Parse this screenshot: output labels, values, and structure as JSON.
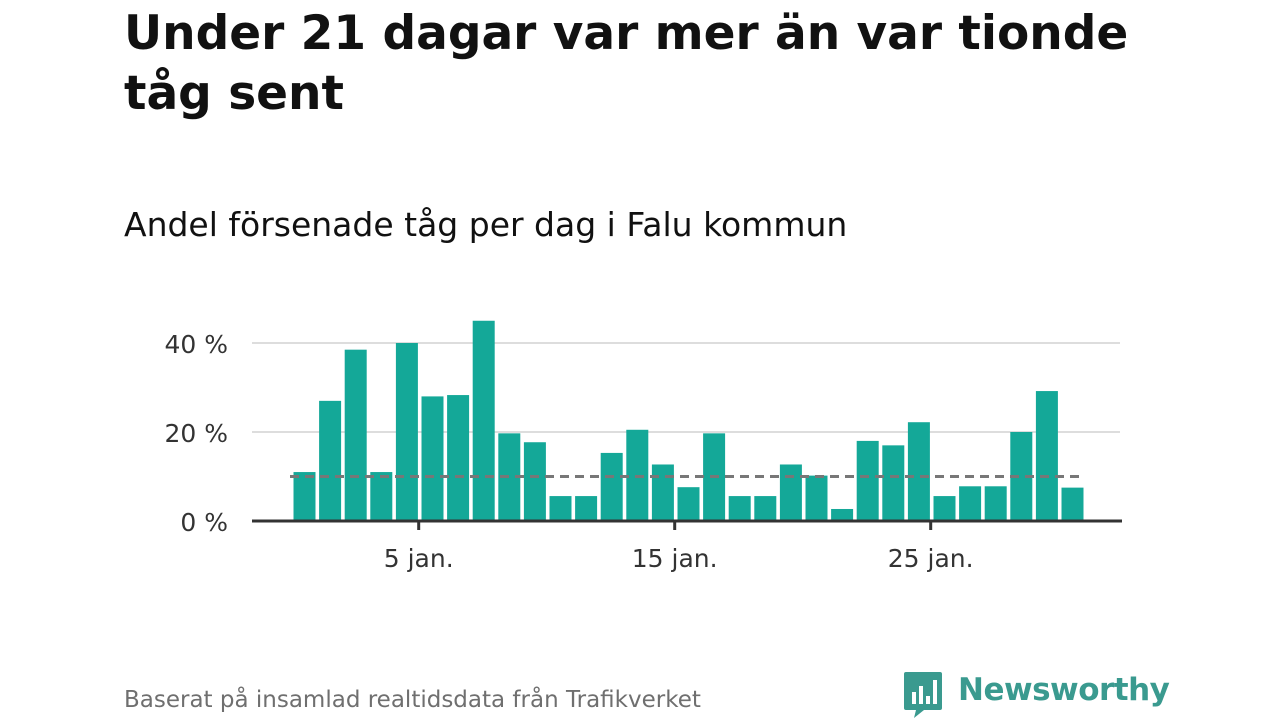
{
  "title": "Under 21 dagar var mer än var tionde tåg sent",
  "subtitle": "Andel försenade tåg per dag i Falu kommun",
  "footer": "Baserat på insamlad realtidsdata från Trafikverket",
  "brand": {
    "name": "Newsworthy",
    "icon": "newsworthy-logo-icon",
    "color": "#3a9a8f"
  },
  "colors": {
    "bar": "#14a898",
    "reference_line": "#777777",
    "grid": "#dddddd"
  },
  "chart_data": {
    "type": "bar",
    "x": [
      1,
      2,
      3,
      4,
      5,
      6,
      7,
      8,
      9,
      10,
      11,
      12,
      13,
      14,
      15,
      16,
      17,
      18,
      19,
      20,
      21,
      22,
      23,
      24,
      25,
      26,
      27,
      28,
      29,
      30,
      31
    ],
    "values": [
      11,
      27,
      38.5,
      11,
      40,
      28,
      28.3,
      45,
      19.7,
      17.7,
      5.6,
      5.6,
      15.3,
      20.5,
      12.7,
      7.6,
      19.7,
      5.6,
      5.6,
      12.7,
      10.2,
      2.7,
      18,
      17,
      22.2,
      5.6,
      7.8,
      7.8,
      20,
      29.2,
      7.5
    ],
    "reference_value": 10,
    "y_ticks": [
      0,
      20,
      40
    ],
    "y_tick_labels": [
      "0 %",
      "20 %",
      "40 %"
    ],
    "x_ticks": [
      5,
      15,
      25
    ],
    "x_tick_labels": [
      "5 jan.",
      "15 jan.",
      "25 jan."
    ],
    "ylim": [
      0,
      46
    ],
    "xlabel": "",
    "ylabel": "",
    "grid": true
  }
}
